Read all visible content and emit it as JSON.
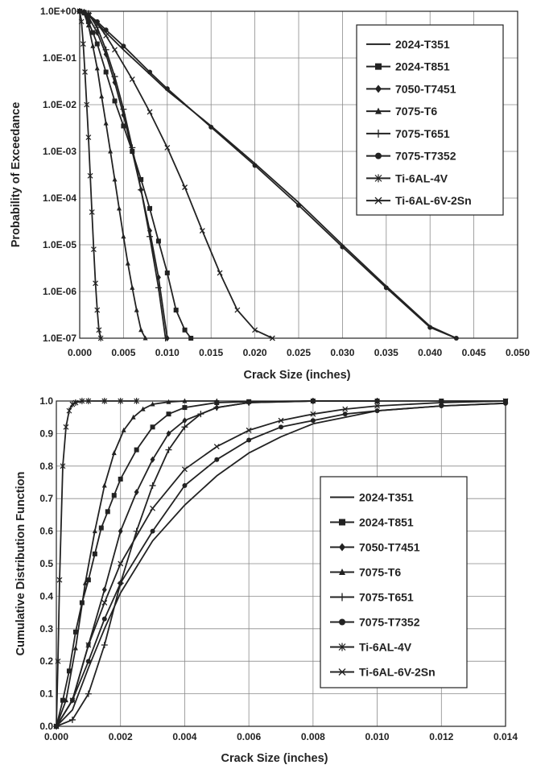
{
  "chart_data": [
    {
      "type": "line",
      "title": "",
      "xlabel": "Crack Size (inches)",
      "ylabel": "Probability of Exceedance",
      "xlim": [
        0,
        0.05
      ],
      "ylim": [
        1e-07,
        1
      ],
      "yscale": "log",
      "grid": true,
      "legend_position": "top-right",
      "x_ticks": [
        "0.000",
        "0.005",
        "0.010",
        "0.015",
        "0.020",
        "0.025",
        "0.030",
        "0.035",
        "0.040",
        "0.045",
        "0.050"
      ],
      "y_ticks": [
        "1.0E-07",
        "1.0E-06",
        "1.0E-05",
        "1.0E-04",
        "1.0E-03",
        "1.0E-02",
        "1.0E-01",
        "1.0E+00"
      ],
      "series": [
        {
          "name": "2024-T351",
          "marker": "none",
          "x": [
            0,
            0.0005,
            0.001,
            0.002,
            0.003,
            0.005,
            0.008,
            0.01,
            0.015,
            0.02,
            0.025,
            0.03,
            0.035,
            0.04,
            0.043
          ],
          "y": [
            1,
            0.95,
            0.8,
            0.55,
            0.35,
            0.15,
            0.045,
            0.02,
            0.0035,
            0.00055,
            8e-05,
            1e-05,
            1.3e-06,
            1.8e-07,
            1e-07
          ]
        },
        {
          "name": "2024-T851",
          "marker": "square",
          "x": [
            0,
            0.0005,
            0.001,
            0.0015,
            0.002,
            0.003,
            0.004,
            0.005,
            0.006,
            0.007,
            0.008,
            0.009,
            0.01,
            0.011,
            0.012,
            0.0127
          ],
          "y": [
            1,
            0.95,
            0.6,
            0.35,
            0.2,
            0.05,
            0.012,
            0.0035,
            0.001,
            0.00025,
            6e-05,
            1.2e-05,
            2.5e-06,
            4e-07,
            1.5e-07,
            1e-07
          ]
        },
        {
          "name": "7050-T7451",
          "marker": "diamond",
          "x": [
            0,
            0.0005,
            0.001,
            0.002,
            0.003,
            0.004,
            0.005,
            0.006,
            0.007,
            0.008,
            0.009,
            0.01
          ],
          "y": [
            1,
            0.97,
            0.75,
            0.35,
            0.12,
            0.03,
            0.006,
            0.001,
            0.00015,
            2e-05,
            2e-06,
            1e-07
          ]
        },
        {
          "name": "7075-T6",
          "marker": "triangle",
          "x": [
            0,
            0.0005,
            0.001,
            0.0015,
            0.002,
            0.0025,
            0.003,
            0.0035,
            0.004,
            0.0045,
            0.005,
            0.0055,
            0.006,
            0.0065,
            0.007,
            0.0075
          ],
          "y": [
            1,
            0.9,
            0.5,
            0.18,
            0.06,
            0.015,
            0.004,
            0.001,
            0.00025,
            6e-05,
            1.5e-05,
            4e-06,
            1.2e-06,
            4e-07,
            1.5e-07,
            1e-07
          ]
        },
        {
          "name": "7075-T651",
          "marker": "plus",
          "x": [
            0,
            0.001,
            0.002,
            0.003,
            0.004,
            0.005,
            0.006,
            0.007,
            0.008,
            0.009,
            0.0098
          ],
          "y": [
            1,
            0.9,
            0.45,
            0.15,
            0.04,
            0.008,
            0.0012,
            0.00015,
            1.5e-05,
            1.2e-06,
            1e-07
          ]
        },
        {
          "name": "7075-T7352",
          "marker": "circle",
          "x": [
            0,
            0.001,
            0.002,
            0.003,
            0.005,
            0.008,
            0.01,
            0.015,
            0.02,
            0.025,
            0.03,
            0.035,
            0.04,
            0.043
          ],
          "y": [
            1,
            0.85,
            0.6,
            0.4,
            0.18,
            0.05,
            0.022,
            0.0033,
            0.0005,
            7e-05,
            9e-06,
            1.2e-06,
            1.7e-07,
            1e-07
          ]
        },
        {
          "name": "Ti-6AL-4V",
          "marker": "asterisk",
          "x": [
            0,
            0.0002,
            0.0004,
            0.0006,
            0.0008,
            0.001,
            0.0012,
            0.0014,
            0.0016,
            0.0018,
            0.002,
            0.0022,
            0.0024
          ],
          "y": [
            1,
            0.6,
            0.2,
            0.05,
            0.01,
            0.002,
            0.0003,
            5e-05,
            8e-06,
            1.5e-06,
            4e-07,
            1.5e-07,
            1e-07
          ]
        },
        {
          "name": "Ti-6AL-6V-2Sn",
          "marker": "x",
          "x": [
            0,
            0.001,
            0.002,
            0.003,
            0.004,
            0.006,
            0.008,
            0.01,
            0.012,
            0.014,
            0.016,
            0.018,
            0.02,
            0.022
          ],
          "y": [
            1,
            0.85,
            0.55,
            0.3,
            0.15,
            0.035,
            0.007,
            0.0012,
            0.00017,
            2e-05,
            2.5e-06,
            4e-07,
            1.5e-07,
            1e-07
          ]
        }
      ]
    },
    {
      "type": "line",
      "title": "",
      "xlabel": "Crack Size (inches)",
      "ylabel": "Cumulative Distribution Function",
      "xlim": [
        0,
        0.014
      ],
      "ylim": [
        0,
        1
      ],
      "grid": true,
      "legend_position": "center-right",
      "x_ticks": [
        "0.000",
        "0.002",
        "0.004",
        "0.006",
        "0.008",
        "0.010",
        "0.012",
        "0.014"
      ],
      "y_ticks": [
        "0.0",
        "0.1",
        "0.2",
        "0.3",
        "0.4",
        "0.5",
        "0.6",
        "0.7",
        "0.8",
        "0.9",
        "1.0"
      ],
      "series": [
        {
          "name": "2024-T351",
          "marker": "none",
          "x": [
            0,
            0.0005,
            0.001,
            0.0015,
            0.002,
            0.003,
            0.004,
            0.005,
            0.006,
            0.007,
            0.008,
            0.009,
            0.01,
            0.012,
            0.014
          ],
          "y": [
            0,
            0.05,
            0.18,
            0.3,
            0.41,
            0.57,
            0.68,
            0.77,
            0.84,
            0.89,
            0.93,
            0.95,
            0.97,
            0.985,
            0.993
          ]
        },
        {
          "name": "2024-T851",
          "marker": "square",
          "x": [
            0,
            0.0002,
            0.0004,
            0.0006,
            0.0008,
            0.001,
            0.0012,
            0.0014,
            0.0016,
            0.0018,
            0.002,
            0.0025,
            0.003,
            0.0035,
            0.004,
            0.005,
            0.006,
            0.008,
            0.01,
            0.012,
            0.014
          ],
          "y": [
            0,
            0.08,
            0.17,
            0.29,
            0.38,
            0.45,
            0.53,
            0.61,
            0.66,
            0.71,
            0.76,
            0.85,
            0.92,
            0.96,
            0.98,
            0.995,
            0.998,
            1,
            1,
            1,
            1
          ]
        },
        {
          "name": "7050-T7451",
          "marker": "diamond",
          "x": [
            0,
            0.0005,
            0.001,
            0.0015,
            0.002,
            0.0025,
            0.003,
            0.0035,
            0.004,
            0.005,
            0.006,
            0.008,
            0.01
          ],
          "y": [
            0,
            0.08,
            0.25,
            0.42,
            0.6,
            0.72,
            0.82,
            0.9,
            0.94,
            0.98,
            0.995,
            1,
            1
          ]
        },
        {
          "name": "7075-T6",
          "marker": "triangle",
          "x": [
            0,
            0.0003,
            0.0006,
            0.0009,
            0.0012,
            0.0015,
            0.0018,
            0.0021,
            0.0024,
            0.0027,
            0.003,
            0.0035,
            0.004,
            0.005
          ],
          "y": [
            0,
            0.08,
            0.24,
            0.44,
            0.6,
            0.74,
            0.84,
            0.91,
            0.95,
            0.975,
            0.99,
            0.997,
            1,
            1
          ]
        },
        {
          "name": "7075-T651",
          "marker": "plus",
          "x": [
            0,
            0.0005,
            0.001,
            0.0015,
            0.002,
            0.0025,
            0.003,
            0.0035,
            0.004,
            0.0045,
            0.005,
            0.006,
            0.008,
            0.01
          ],
          "y": [
            0,
            0.02,
            0.1,
            0.25,
            0.44,
            0.6,
            0.74,
            0.85,
            0.92,
            0.96,
            0.98,
            0.995,
            1,
            1
          ]
        },
        {
          "name": "7075-T7352",
          "marker": "circle",
          "x": [
            0,
            0.0005,
            0.001,
            0.0015,
            0.002,
            0.003,
            0.004,
            0.005,
            0.006,
            0.007,
            0.008,
            0.009,
            0.01,
            0.012,
            0.014
          ],
          "y": [
            0,
            0.08,
            0.2,
            0.33,
            0.44,
            0.6,
            0.74,
            0.82,
            0.88,
            0.92,
            0.94,
            0.96,
            0.97,
            0.985,
            0.993
          ]
        },
        {
          "name": "Ti-6AL-4V",
          "marker": "asterisk",
          "x": [
            0,
            5e-05,
            0.0001,
            0.0002,
            0.0003,
            0.0004,
            0.0005,
            0.0006,
            0.0008,
            0.001,
            0.0015,
            0.002,
            0.0025
          ],
          "y": [
            0,
            0.2,
            0.45,
            0.8,
            0.92,
            0.97,
            0.99,
            0.995,
            1,
            1,
            1,
            1,
            1
          ]
        },
        {
          "name": "Ti-6AL-6V-2Sn",
          "marker": "x",
          "x": [
            0,
            0.0005,
            0.001,
            0.0015,
            0.002,
            0.003,
            0.004,
            0.005,
            0.006,
            0.007,
            0.008,
            0.009,
            0.01,
            0.012,
            0.014
          ],
          "y": [
            0,
            0.08,
            0.25,
            0.38,
            0.5,
            0.67,
            0.79,
            0.86,
            0.91,
            0.94,
            0.96,
            0.975,
            0.985,
            0.995,
            1
          ]
        }
      ]
    }
  ]
}
